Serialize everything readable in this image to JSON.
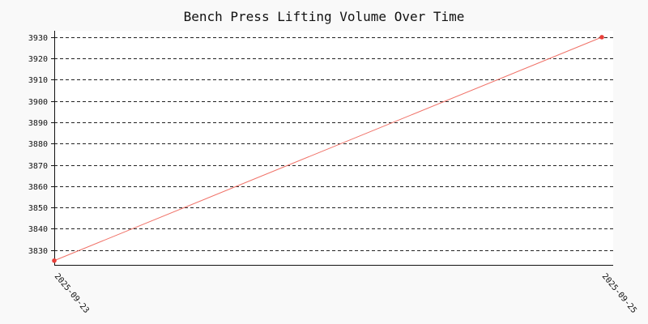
{
  "chart_data": {
    "type": "line",
    "title": "Bench Press Lifting Volume Over Time",
    "xlabel": "",
    "ylabel": "",
    "x": [
      "2025-09-23",
      "2025-09-25"
    ],
    "series": [
      {
        "values": [
          3825,
          3930
        ],
        "color": "#f07167"
      }
    ],
    "ylim": [
      3823,
      3933
    ],
    "yticks": [
      3830,
      3840,
      3850,
      3860,
      3870,
      3880,
      3890,
      3900,
      3910,
      3920,
      3930
    ],
    "grid": true,
    "grid_style": "dashed",
    "plot_background": "#ffffff",
    "page_background": "#f9f9f9"
  }
}
